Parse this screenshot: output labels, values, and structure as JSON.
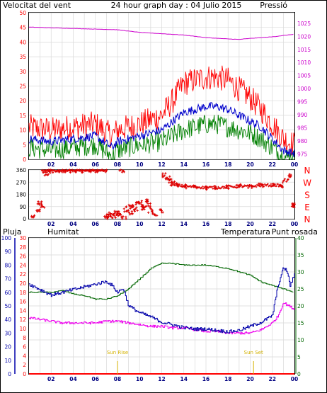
{
  "header": {
    "left_title": "Velocitat del vent",
    "center_title": "24 hour graph day : 04 Julio 2015",
    "right_title": "Pressió"
  },
  "colors": {
    "wind": "#ff0000",
    "wind_avg": "#0000cc",
    "wind_low": "#008000",
    "pressure": "#cc00cc",
    "humidity": "#0000aa",
    "temperature": "#006600",
    "dewpoint": "#ee00ee",
    "rain": "#ff0000",
    "direction": "#dd0000",
    "grid": "#d9d9d9",
    "frame": "#000000",
    "sun": "#d4b200"
  },
  "chart_data": [
    {
      "type": "line",
      "title": "24 hour graph day : 04 Julio 2015",
      "left_axis_label": "Velocitat del vent",
      "right_axis_label": "Pressió",
      "x_ticks": [
        "02",
        "04",
        "06",
        "08",
        "10",
        "12",
        "14",
        "16",
        "18",
        "20",
        "22",
        "00"
      ],
      "y_left": {
        "ticks": [
          0,
          5,
          10,
          15,
          20,
          25,
          30,
          35,
          40,
          45,
          50
        ],
        "range": [
          0,
          50
        ]
      },
      "y_right": {
        "ticks": [
          975,
          980,
          985,
          990,
          995,
          1000,
          1005,
          1010,
          1015,
          1020,
          1025
        ],
        "range": [
          973,
          1029
        ]
      },
      "series": [
        {
          "role": "gust",
          "color": "#ff0000",
          "hours": [
            0,
            2,
            4,
            6,
            7.5,
            8,
            10,
            12,
            13,
            14,
            15,
            16,
            17,
            18,
            19,
            20,
            21,
            22,
            23,
            24
          ],
          "values": [
            11,
            10,
            11,
            12,
            8,
            10,
            12,
            15,
            20,
            26,
            27,
            28,
            28,
            27,
            24,
            21,
            17,
            12,
            7,
            5
          ]
        },
        {
          "role": "average",
          "color": "#0000cc",
          "hours": [
            0,
            2,
            4,
            6,
            7.5,
            8,
            10,
            12,
            13,
            14,
            15,
            16,
            17,
            18,
            19,
            20,
            21,
            22,
            23,
            24
          ],
          "values": [
            7,
            6,
            7,
            8,
            4,
            6,
            8,
            10,
            13,
            16,
            17,
            18,
            18,
            17,
            15,
            13,
            11,
            7,
            3,
            2
          ]
        },
        {
          "role": "minimum",
          "color": "#008000",
          "hours": [
            0,
            2,
            4,
            6,
            7.5,
            8,
            10,
            12,
            13,
            14,
            15,
            16,
            17,
            18,
            19,
            20,
            21,
            22,
            23,
            24
          ],
          "values": [
            4,
            3,
            4,
            5,
            1,
            3,
            5,
            6,
            8,
            10,
            11,
            12,
            12,
            11,
            10,
            9,
            7,
            4,
            1,
            0
          ]
        },
        {
          "role": "pressure",
          "color": "#cc00cc",
          "axis": "right",
          "hours": [
            0,
            4,
            8,
            10,
            12,
            14,
            16,
            18,
            19,
            20,
            22,
            24
          ],
          "values": [
            1023.5,
            1023,
            1022.5,
            1021.5,
            1021,
            1020.5,
            1019.5,
            1019,
            1018.8,
            1019.2,
            1019.8,
            1020.8
          ]
        }
      ]
    },
    {
      "type": "scatter",
      "y_right_labels": [
        "N",
        "W",
        "S",
        "E",
        "N"
      ],
      "y_left": {
        "ticks": [
          0,
          90,
          180,
          270,
          360
        ],
        "range": [
          0,
          360
        ]
      },
      "x_ticks": [
        "02",
        "04",
        "06",
        "08",
        "10",
        "12",
        "14",
        "16",
        "18",
        "20",
        "22",
        "00"
      ],
      "series": [
        {
          "role": "wind direction",
          "color": "#dd0000",
          "hours": [
            0.3,
            0.8,
            1.0,
            1.2,
            1.4,
            1.6,
            2.0,
            2.6,
            3.2,
            3.8,
            4.4,
            5.0,
            5.6,
            6.2,
            6.8,
            7.0,
            7.2,
            7.4,
            7.6,
            7.8,
            8.0,
            8.2,
            8.4,
            8.6,
            8.8,
            9.0,
            9.2,
            9.4,
            9.6,
            9.8,
            10.0,
            10.2,
            10.4,
            10.6,
            10.8,
            11.0,
            11.4,
            12.0,
            12.2,
            12.5,
            12.8,
            13.0,
            13.4,
            14.0,
            15.0,
            16.0,
            17.0,
            18.0,
            19.0,
            20.0,
            21.0,
            22.0,
            22.8,
            23.2,
            23.5,
            23.8,
            24.0
          ],
          "values": [
            10,
            60,
            120,
            90,
            350,
            330,
            350,
            355,
            355,
            355,
            355,
            350,
            355,
            350,
            358,
            20,
            10,
            40,
            20,
            50,
            15,
            40,
            350,
            10,
            60,
            90,
            45,
            100,
            70,
            110,
            120,
            90,
            80,
            130,
            100,
            60,
            30,
            60,
            320,
            300,
            280,
            260,
            250,
            240,
            235,
            230,
            230,
            235,
            240,
            240,
            245,
            250,
            245,
            290,
            320,
            100,
            100
          ]
        }
      ]
    },
    {
      "type": "line",
      "labels": {
        "rain": "Pluja",
        "humidity": "Humitat",
        "temperature": "Temperatura",
        "dewpoint": "Punt rosada"
      },
      "x_ticks": [
        "02",
        "04",
        "06",
        "08",
        "10",
        "12",
        "14",
        "16",
        "18",
        "20",
        "22",
        "00"
      ],
      "y_rain": {
        "ticks": [
          0,
          2,
          4,
          6,
          8,
          10,
          12,
          14,
          16,
          18,
          20,
          22,
          24,
          26,
          28,
          30
        ],
        "range": [
          0,
          30
        ]
      },
      "y_humidity": {
        "ticks": [
          0,
          10,
          20,
          30,
          40,
          50,
          60,
          70,
          80,
          90,
          100
        ],
        "range": [
          0,
          100
        ]
      },
      "y_temperature": {
        "ticks": [
          0,
          5,
          10,
          15,
          20,
          25,
          30,
          35,
          40
        ],
        "range": [
          0,
          40
        ]
      },
      "annotations": [
        {
          "text": "Sun Rise",
          "hour": 8
        },
        {
          "text": "Sun Set",
          "hour": 20.3
        }
      ],
      "series": [
        {
          "role": "humidity",
          "color": "#0000aa",
          "axis": "humidity",
          "hours": [
            0,
            1,
            2,
            3,
            4,
            5,
            6,
            7,
            7.5,
            8,
            8.5,
            9,
            10,
            11,
            12,
            13,
            14,
            15,
            16,
            17,
            18,
            19,
            20,
            21,
            22,
            22.5,
            23,
            23.3,
            23.6,
            24
          ],
          "values": [
            66,
            62,
            58,
            60,
            62,
            64,
            66,
            68,
            65,
            60,
            63,
            50,
            45,
            42,
            38,
            36,
            34,
            33,
            33,
            32,
            31,
            32,
            35,
            38,
            43,
            65,
            78,
            76,
            65,
            73
          ]
        },
        {
          "role": "temperature",
          "color": "#006600",
          "axis": "temperature",
          "hours": [
            0,
            1,
            2,
            3,
            4,
            5,
            6,
            7,
            8,
            9,
            10,
            11,
            12,
            13,
            14,
            15,
            16,
            17,
            18,
            19,
            20,
            21,
            22,
            23,
            24
          ],
          "values": [
            24,
            24,
            24,
            24.5,
            23.5,
            23,
            22,
            22,
            23,
            25,
            28,
            31,
            32.5,
            32.5,
            32,
            32,
            32,
            31.5,
            31,
            30,
            29,
            27,
            26,
            25,
            24
          ]
        },
        {
          "role": "dew point",
          "color": "#ee00ee",
          "axis": "temperature",
          "hours": [
            0,
            1,
            2,
            3,
            4,
            5,
            6,
            7,
            8,
            9,
            10,
            11,
            12,
            13,
            14,
            15,
            16,
            17,
            18,
            19,
            20,
            21,
            22,
            22.5,
            23,
            23.5,
            24
          ],
          "values": [
            16.5,
            16,
            15.5,
            15,
            15,
            15,
            15,
            15.5,
            15.5,
            15,
            14.5,
            14,
            14,
            13.5,
            13.5,
            13,
            12.5,
            12.5,
            12,
            12,
            12,
            13,
            15,
            17,
            21,
            20,
            19
          ]
        },
        {
          "role": "rain",
          "color": "#ff0000",
          "axis": "rain",
          "hours": [
            0,
            24
          ],
          "values": [
            0,
            0
          ]
        }
      ]
    }
  ]
}
